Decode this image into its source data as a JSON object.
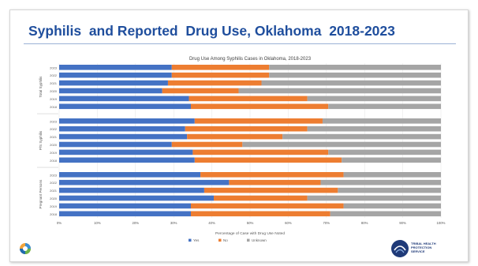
{
  "slide": {
    "title": "Syphilis  and Reported  Drug Use, Oklahoma  2018-2023"
  },
  "logos": {
    "right_text": "TRIBAL HEALTH\nPROTECTION\nSERVICE"
  },
  "chart_data": {
    "type": "bar",
    "orientation": "horizontal",
    "stacked": true,
    "title": "Drug Use Among Syphilis Cases in Oklahoma, 2018-2023",
    "xlabel": "Percentage of Case with Drug Use Noted",
    "ylabel": "",
    "xlim": [
      0,
      100
    ],
    "x_ticks": [
      "0%",
      "10%",
      "20%",
      "30%",
      "40%",
      "50%",
      "60%",
      "70%",
      "80%",
      "90%",
      "100%"
    ],
    "legend_position": "bottom",
    "series_colors": {
      "Yes": "#4472c4",
      "No": "#ed7d31",
      "Unknown": "#a5a5a5"
    },
    "groups": [
      {
        "name": "Total Syphilis",
        "rows": [
          {
            "year": "2023",
            "yes": 29.5,
            "no": 25.5,
            "unknown": 45.0
          },
          {
            "year": "2022",
            "yes": 29.5,
            "no": 25.5,
            "unknown": 45.0
          },
          {
            "year": "2021",
            "yes": 28.5,
            "no": 24.5,
            "unknown": 47.0
          },
          {
            "year": "2020",
            "yes": 27.0,
            "no": 20.0,
            "unknown": 53.0
          },
          {
            "year": "2019",
            "yes": 34.0,
            "no": 31.0,
            "unknown": 35.0
          },
          {
            "year": "2018",
            "yes": 34.5,
            "no": 36.0,
            "unknown": 29.5
          }
        ]
      },
      {
        "name": "P/S Syphilis",
        "rows": [
          {
            "year": "2023",
            "yes": 35.5,
            "no": 33.5,
            "unknown": 31.0
          },
          {
            "year": "2022",
            "yes": 33.0,
            "no": 32.0,
            "unknown": 35.0
          },
          {
            "year": "2021",
            "yes": 33.5,
            "no": 25.0,
            "unknown": 41.5
          },
          {
            "year": "2020",
            "yes": 29.5,
            "no": 18.5,
            "unknown": 52.0
          },
          {
            "year": "2019",
            "yes": 35.0,
            "no": 35.5,
            "unknown": 29.5
          },
          {
            "year": "2018",
            "yes": 35.5,
            "no": 38.5,
            "unknown": 26.0
          }
        ]
      },
      {
        "name": "Pregnant Persons",
        "rows": [
          {
            "year": "2023",
            "yes": 37.0,
            "no": 37.5,
            "unknown": 25.5
          },
          {
            "year": "2022",
            "yes": 44.5,
            "no": 24.0,
            "unknown": 31.5
          },
          {
            "year": "2021",
            "yes": 38.0,
            "no": 35.0,
            "unknown": 27.0
          },
          {
            "year": "2020",
            "yes": 40.5,
            "no": 24.5,
            "unknown": 35.0
          },
          {
            "year": "2019",
            "yes": 34.5,
            "no": 40.0,
            "unknown": 25.5
          },
          {
            "year": "2018",
            "yes": 34.5,
            "no": 36.5,
            "unknown": 29.0
          }
        ]
      }
    ],
    "legend": [
      "Yes",
      "No",
      "Unknown"
    ]
  }
}
